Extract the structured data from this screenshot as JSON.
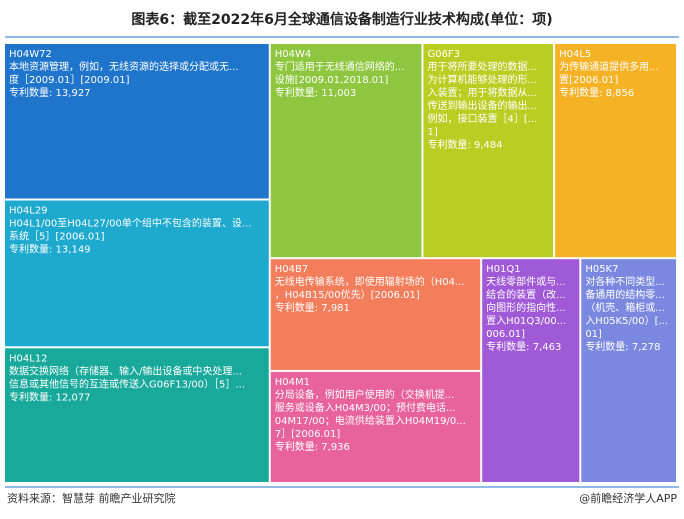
{
  "chart_data": {
    "type": "treemap",
    "title": "图表6：截至2022年6月全球通信设备制造行业技术构成(单位：项)",
    "categories": [
      "H04W72",
      "H04L29",
      "H04L12",
      "H04W4",
      "G06F3",
      "H04L5",
      "H04B7",
      "H04M1",
      "H01Q1",
      "H05K7"
    ],
    "descriptions": [
      [
        "本地资源管理，例如，无线资源的选择或分配或无...",
        "度［2009.01］[2009.01]"
      ],
      [
        "H04L1/00至H04L27/00单个组中不包含的装置、设...",
        "系统［5］[2006.01]"
      ],
      [
        "数据交换网络（存储器、输入/输出设备或中央处理...",
        "信息或其他信号的互连或传送入G06F13/00）［5］..."
      ],
      [
        "专门适用于无线通信网络的...",
        "设施[2009.01,2018.01]"
      ],
      [
        "用于将所要处理的数据...",
        "为计算机能够处理的形...",
        "入装置；用于将数据从...",
        "传送到输出设备的输出...",
        "例如，接口装置［4］[...",
        "1]"
      ],
      [
        "为传输通道提供多用...",
        "置[2006.01]"
      ],
      [
        "无线电传输系统，即使用辐射场的（H04...",
        "，H04B15/00优先）[2006.01]"
      ],
      [
        "分局设备，例如用户使用的（交换机提...",
        "服务或设备入H04M3/00；预付费电话...",
        "04M17/00；电流供给装置入H04M19/0...",
        "7］[2006.01]"
      ],
      [
        "天线零部件或与...",
        "结合的装置（改...",
        "向图形的指向性...",
        "置入H01Q3/00...",
        "006.01]"
      ],
      [
        "对各种不同类型...",
        "备通用的结构零...",
        "（机壳、箱柜或...",
        "入H05K5/00）[...",
        "01]"
      ]
    ],
    "values": [
      13927,
      13149,
      12077,
      11003,
      9484,
      8856,
      7981,
      7936,
      7463,
      7278
    ],
    "value_labels": [
      "专利数量: 13,927",
      "专利数量: 13,149",
      "专利数量: 12,077",
      "专利数量: 11,003",
      "专利数量: 9,484",
      "专利数量: 8,856",
      "专利数量: 7,981",
      "专利数量: 7,936",
      "专利数量: 7,463",
      "专利数量: 7,278"
    ],
    "colors": [
      "#1f74cc",
      "#1ea9cf",
      "#19a99b",
      "#8fc640",
      "#bacd22",
      "#f5b225",
      "#f47d5b",
      "#e8629b",
      "#a05ad8",
      "#7b88e0"
    ],
    "source": "资料来源：智慧芽 前瞻产业研究院",
    "credit": "@前瞻经济学人APP"
  }
}
